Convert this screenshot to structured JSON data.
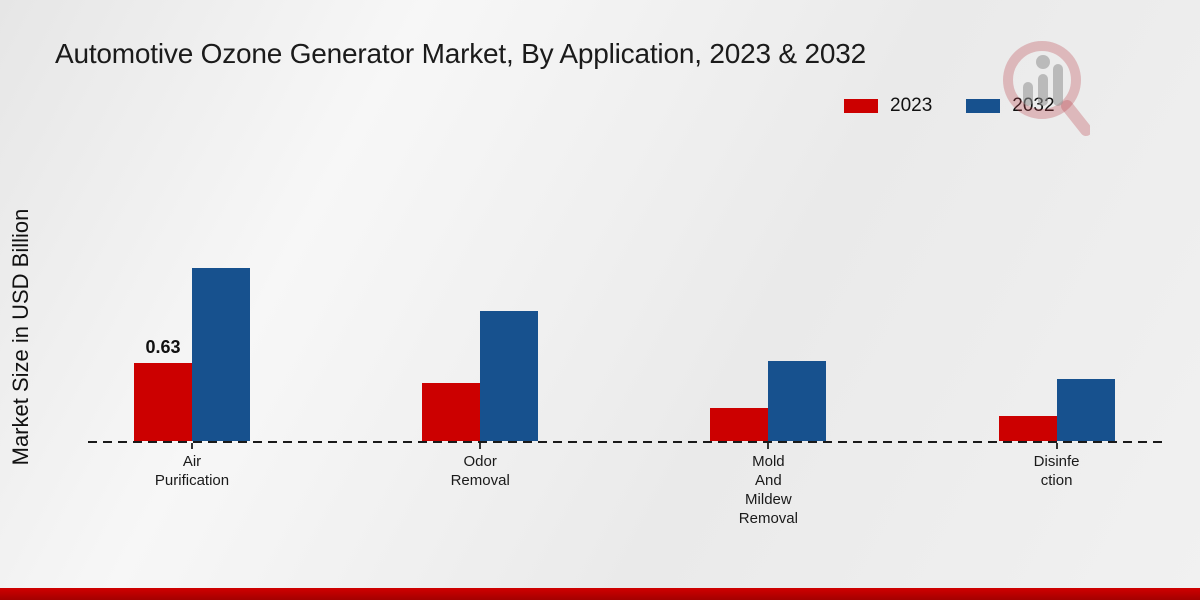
{
  "title": "Automotive Ozone Generator Market, By Application, 2023 & 2032",
  "y_axis_label": "Market Size in USD Billion",
  "legend": {
    "items": [
      {
        "label": "2023",
        "color": "#cc0000"
      },
      {
        "label": "2032",
        "color": "#17518e"
      }
    ]
  },
  "watermark": {
    "icon": "magnifier-bar-chart-logo"
  },
  "footer": {
    "band_color": "#c00000"
  },
  "chart_data": {
    "type": "bar",
    "grouped": true,
    "title": "Automotive Ozone Generator Market, By Application, 2023 & 2032",
    "xlabel": "",
    "ylabel": "Market Size in USD Billion",
    "ylim": [
      0,
      1.6
    ],
    "grid": false,
    "legend_position": "top-right",
    "baseline_style": "dashed",
    "categories": [
      {
        "name": "Air Purification",
        "lines": [
          "Air",
          "Purification"
        ]
      },
      {
        "name": "Odor Removal",
        "lines": [
          "Odor",
          "Removal"
        ]
      },
      {
        "name": "Mold And Mildew Removal",
        "lines": [
          "Mold",
          "And",
          "Mildew",
          "Removal"
        ]
      },
      {
        "name": "Disinfection",
        "lines": [
          "Disinfe",
          "ction"
        ]
      }
    ],
    "series": [
      {
        "name": "2023",
        "color": "#cc0000",
        "values": [
          0.63,
          0.47,
          0.27,
          0.2
        ],
        "bar_labels": [
          "0.63",
          "",
          "",
          ""
        ]
      },
      {
        "name": "2032",
        "color": "#17518e",
        "values": [
          1.4,
          1.05,
          0.65,
          0.5
        ],
        "bar_labels": [
          "",
          "",
          "",
          ""
        ]
      }
    ]
  }
}
